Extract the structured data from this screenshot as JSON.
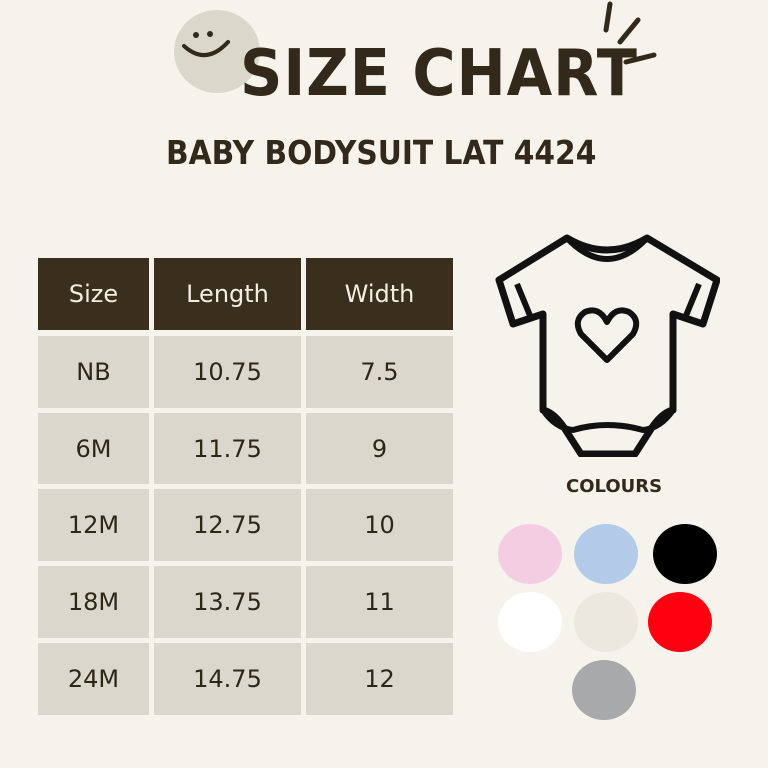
{
  "header": {
    "title": "SIZE CHART",
    "subtitle": "BABY BODYSUIT LAT 4424"
  },
  "table": {
    "columns": [
      "Size",
      "Length",
      "Width"
    ],
    "rows": [
      [
        "NB",
        "10.75",
        "7.5"
      ],
      [
        "6M",
        "11.75",
        "9"
      ],
      [
        "12M",
        "12.75",
        "10"
      ],
      [
        "18M",
        "13.75",
        "11"
      ],
      [
        "24M",
        "14.75",
        "12"
      ]
    ],
    "header_color": "#3a2f1c",
    "cell_color": "#dad8cc"
  },
  "colours": {
    "label": "COLOURS",
    "swatches": [
      "#f5cde3",
      "#b3cbe8",
      "#000000",
      "#ffffff",
      "#ebe8df",
      "#ff0010",
      "#a7a9ab"
    ]
  },
  "icons": [
    "smiley-icon",
    "sparkle-lines-icon",
    "bodysuit-heart-icon"
  ]
}
